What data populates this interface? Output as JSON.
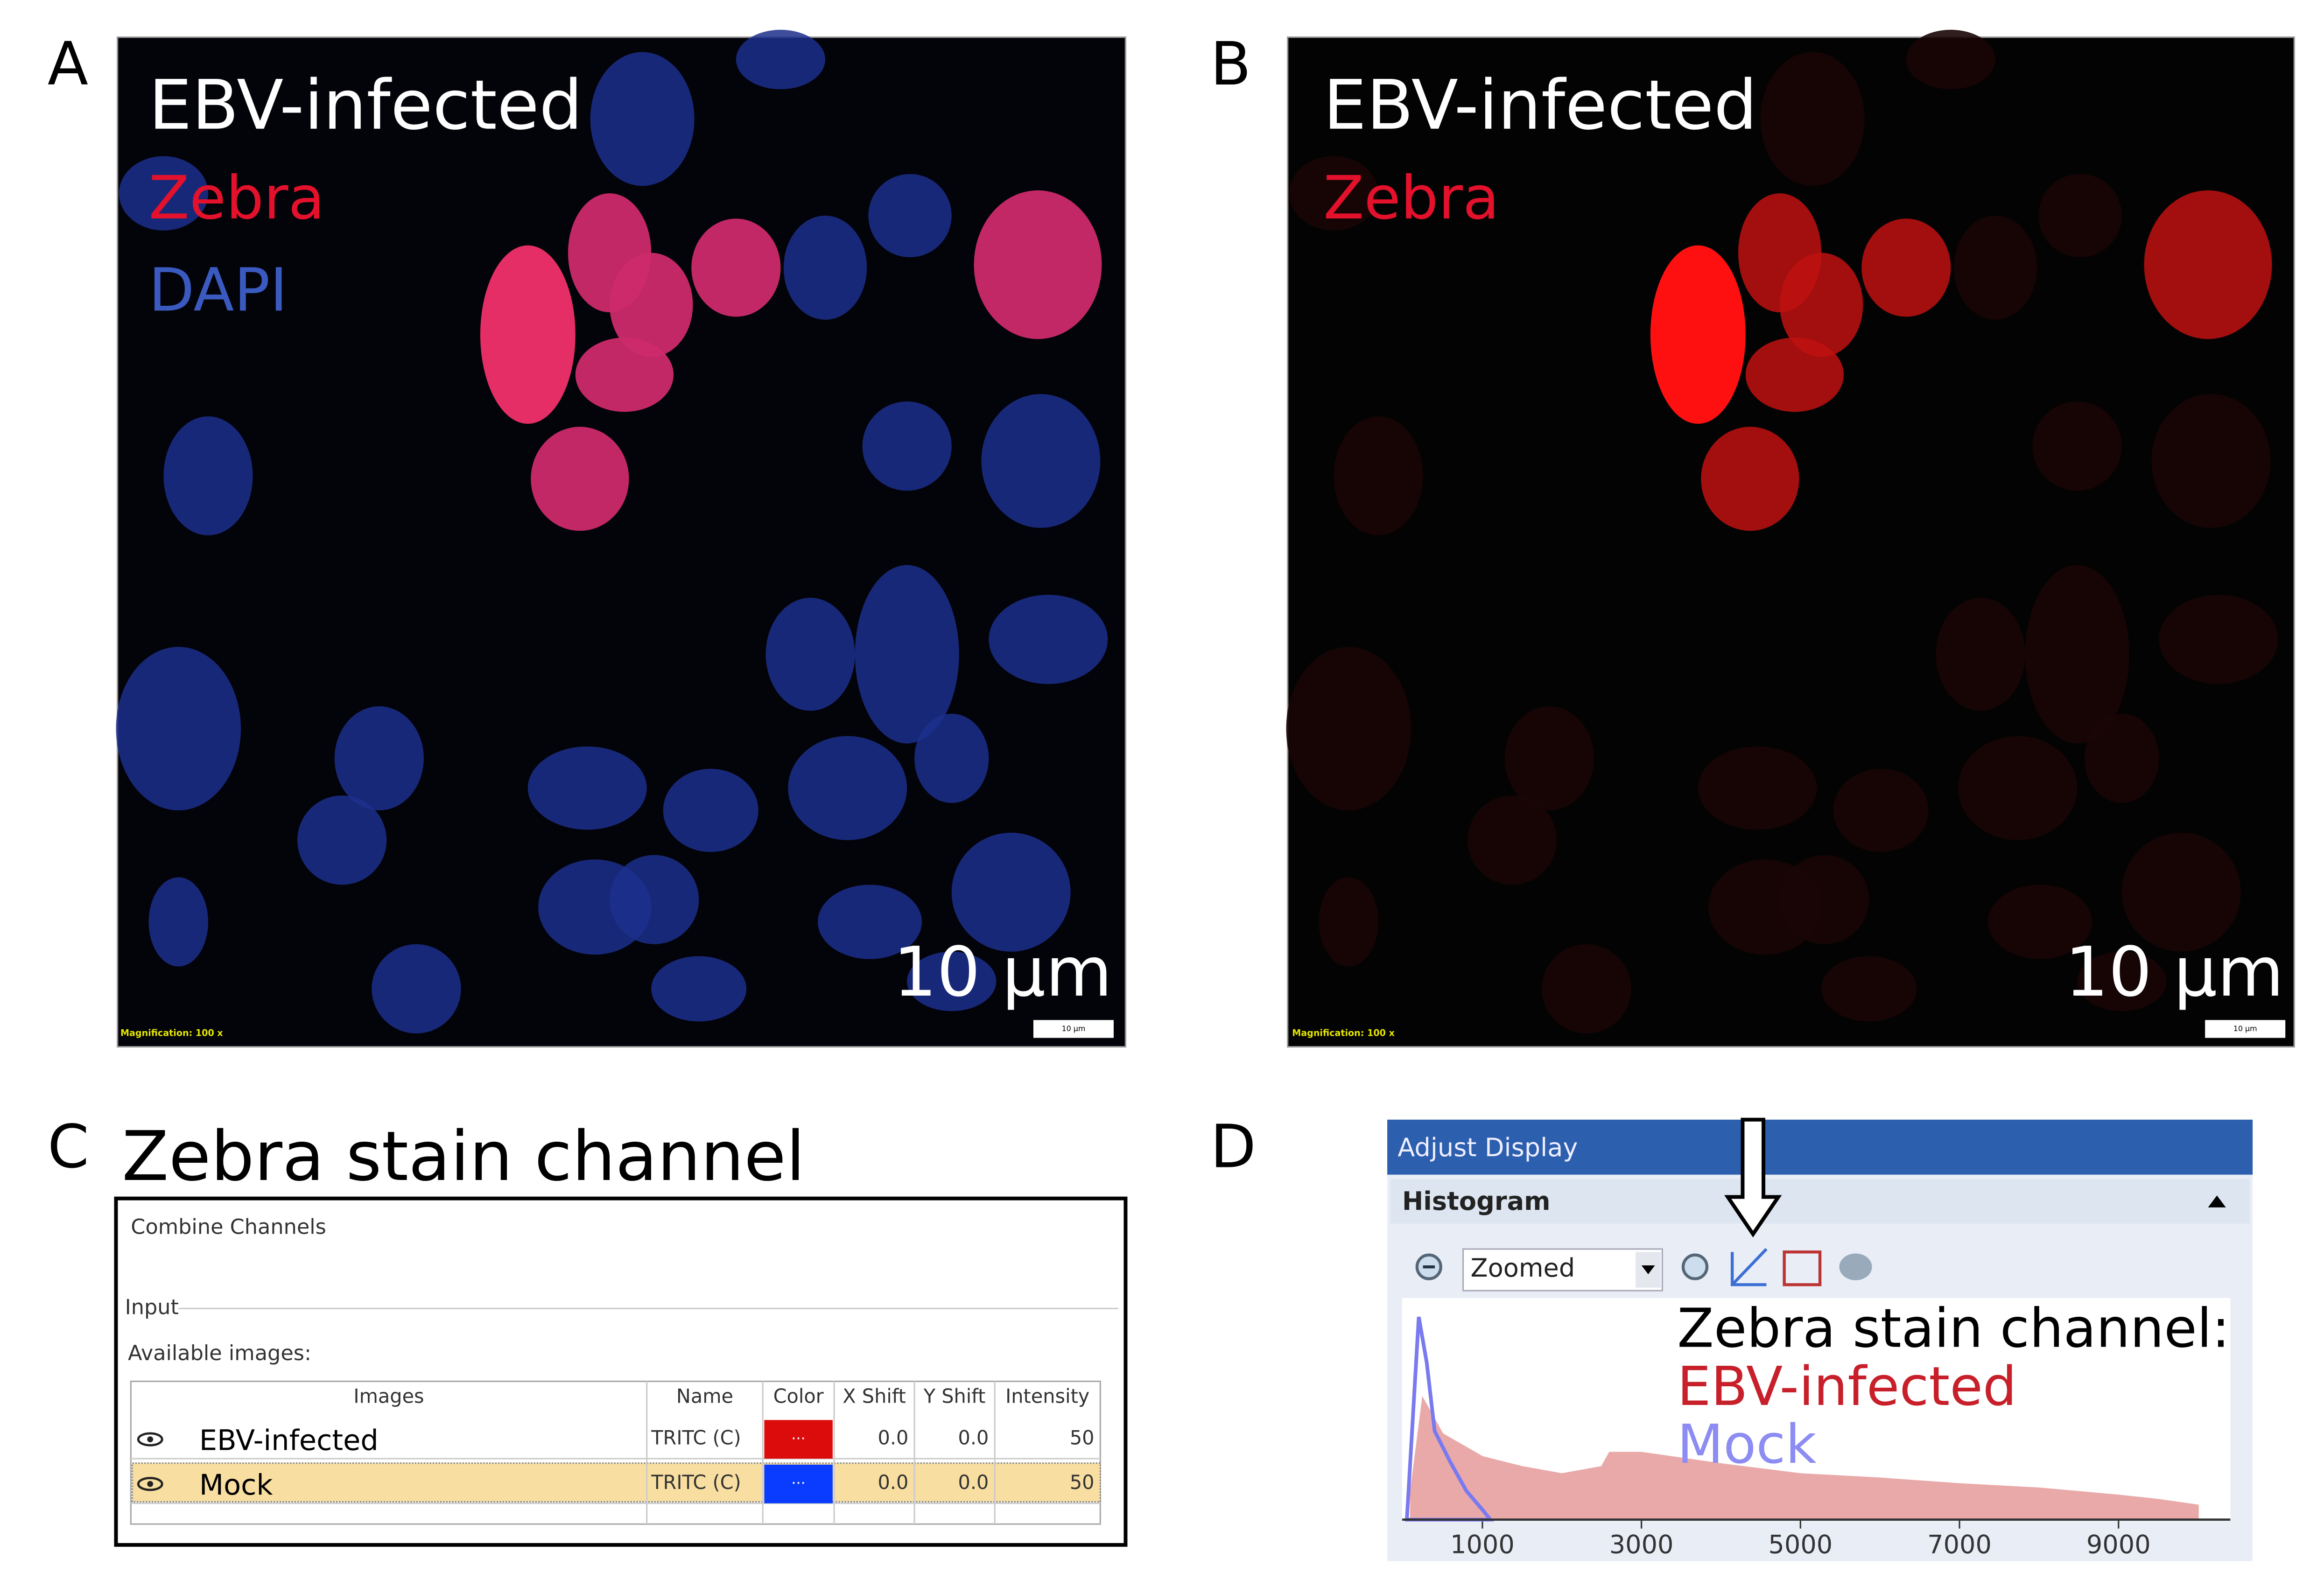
{
  "panels": {
    "A": {
      "label": "A",
      "texts": [
        "EBV-infected",
        "Zebra",
        "DAPI"
      ],
      "scale_bar": "10 µm",
      "magnification": "Magnification:  100 x",
      "scale_bar_small": "10 µm"
    },
    "B": {
      "label": "B",
      "texts": [
        "EBV-infected",
        "Zebra"
      ],
      "scale_bar": "10 µm",
      "magnification": "Magnification:  100 x",
      "scale_bar_small": "10 µm"
    },
    "C": {
      "label": "C",
      "title": "Zebra stain channel",
      "window": "Combine Channels",
      "group": "Input",
      "available": "Available images:",
      "table": {
        "header": [
          "Images",
          "Name",
          "Color",
          "X Shift",
          "Y Shift",
          "Intensity"
        ],
        "rows": [
          [
            "EBV-infected",
            "TRITC (C)",
            "···",
            "0.0",
            "0.0",
            "50"
          ],
          [
            "Mock",
            "TRITC (C)",
            "···",
            "0.0",
            "0.0",
            "50"
          ]
        ],
        "cell_colors": [
          "#dd0c0c",
          "#0a3cff"
        ]
      }
    },
    "D": {
      "label": "D",
      "window": "Adjust Display",
      "section": "Histogram",
      "zoom": "Zoomed",
      "legend_title": "Zebra stain channel:",
      "histogram": {
        "type": "area",
        "xlim": [
          0,
          10350
        ],
        "ylim": [
          0,
          150
        ],
        "xticks": [
          1000,
          3000,
          5000,
          7000,
          9000
        ],
        "series": [
          {
            "name": "EBV-infected",
            "color": "#e8a0a0",
            "legend_color": "#c8202a",
            "x": [
              100,
              250,
              500,
              750,
              1000,
              1500,
              2000,
              2500,
              2600,
              3000,
              4000,
              5000,
              6000,
              7000,
              8000,
              9000,
              9500,
              10000
            ],
            "values": [
              20,
              85,
              60,
              52,
              44,
              37,
              32,
              37,
              47,
              47,
              39,
              32,
              29,
              25,
              22,
              17,
              14,
              10
            ]
          },
          {
            "name": "Mock",
            "color": "#7a7af0",
            "legend_color": "#8c8cf2",
            "x": [
              50,
              200,
              300,
              400,
              600,
              800,
              1000,
              1100
            ],
            "values": [
              0,
              142,
              110,
              62,
              40,
              20,
              7,
              0
            ]
          }
        ]
      }
    }
  }
}
